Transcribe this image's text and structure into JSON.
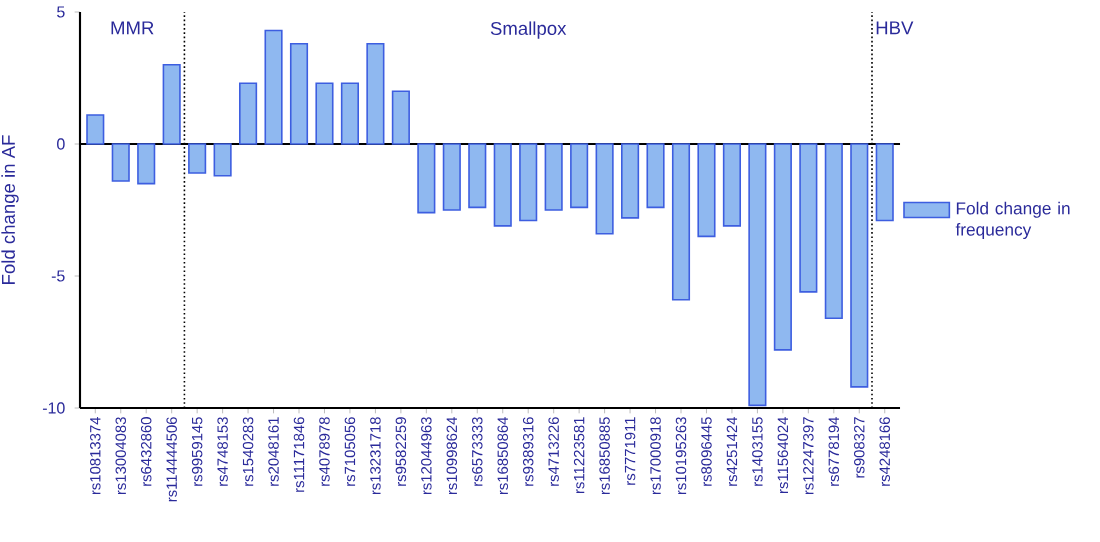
{
  "chart_data": {
    "type": "bar",
    "ylabel": "Fold change in AF",
    "categories": [
      "rs10813374",
      "rs13004083",
      "rs6432860",
      "rs114444506",
      "rs9959145",
      "rs4748153",
      "rs1540283",
      "rs2048161",
      "rs11171846",
      "rs4078978",
      "rs7105056",
      "rs13231718",
      "rs9582259",
      "rs12044963",
      "rs10998624",
      "rs6573333",
      "rs16850864",
      "rs9389316",
      "rs4713226",
      "rs11223581",
      "rs16850885",
      "rs7771911",
      "rs17000918",
      "rs10195263",
      "rs8096445",
      "rs4251424",
      "rs1403155",
      "rs11564024",
      "rs12247397",
      "rs6778194",
      "rs908327",
      "rs4248166"
    ],
    "series": [
      {
        "name": "Fold change in frequency",
        "color": "#8fb8f0",
        "values": [
          1.1,
          -1.4,
          -1.5,
          3.0,
          -1.1,
          -1.2,
          2.3,
          4.3,
          3.8,
          2.3,
          2.3,
          3.8,
          2.0,
          -2.6,
          -2.5,
          -2.4,
          -3.1,
          -2.9,
          -2.5,
          -2.4,
          -3.4,
          -2.8,
          -2.4,
          -5.9,
          -3.5,
          -3.1,
          -9.9,
          -7.8,
          -5.6,
          -6.6,
          -9.2,
          -2.9
        ]
      }
    ],
    "ylim": [
      -10,
      5
    ],
    "yticks": [
      -10,
      -5,
      0,
      5
    ],
    "annotations": [
      "MMR",
      "Smallpox",
      "HBV"
    ],
    "legend": "right",
    "grid": false
  }
}
